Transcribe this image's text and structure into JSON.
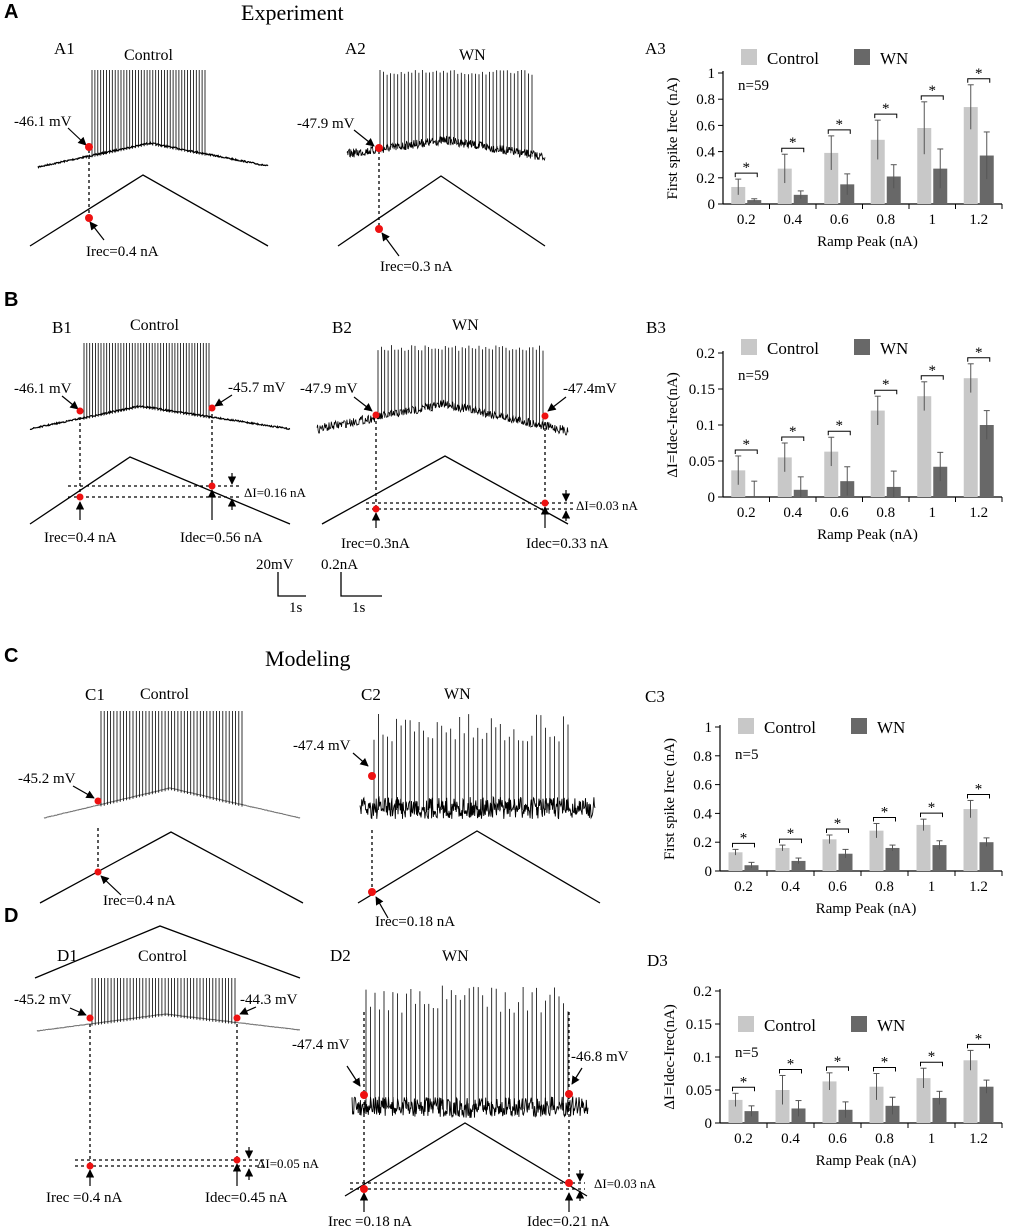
{
  "panels": {
    "A": "A",
    "B": "B",
    "C": "C",
    "D": "D"
  },
  "titles": {
    "experiment": "Experiment",
    "modeling": "Modeling"
  },
  "sub_labels": {
    "A1": "A1",
    "A2": "A2",
    "A3": "A3",
    "B1": "B1",
    "B2": "B2",
    "B3": "B3",
    "C1": "C1",
    "C2": "C2",
    "C3": "C3",
    "D1": "D1",
    "D2": "D2",
    "D3": "D3"
  },
  "conditions": {
    "control": "Control",
    "wn": "WN"
  },
  "annotations": {
    "A1_v": "-46.1 mV",
    "A1_i": "Irec=0.4 nA",
    "A2_v": "-47.9 mV",
    "A2_i": "Irec=0.3 nA",
    "B1_v1": "-46.1 mV",
    "B1_v2": "-45.7 mV",
    "B1_irec": "Irec=0.4 nA",
    "B1_idec": "Idec=0.56 nA",
    "B1_di": "ΔI=0.16 nA",
    "B2_v1": "-47.9 mV",
    "B2_v2": "-47.4mV",
    "B2_irec": "Irec=0.3nA",
    "B2_idec": "Idec=0.33 nA",
    "B2_di": "ΔI=0.03 nA",
    "C1_v": "-45.2 mV",
    "C1_i": "Irec=0.4 nA",
    "C2_v": "-47.4 mV",
    "C2_i": "Irec=0.18 nA",
    "D1_v1": "-45.2 mV",
    "D1_v2": "-44.3 mV",
    "D1_irec": "Irec =0.4 nA",
    "D1_idec": "Idec=0.45 nA",
    "D1_di": "ΔI=0.05 nA",
    "D2_v1": "-47.4 mV",
    "D2_v2": "-46.8 mV",
    "D2_irec": "Irec =0.18 nA",
    "D2_idec": "Idec=0.21 nA",
    "D2_di": "ΔI=0.03 nA"
  },
  "scale_bars": {
    "voltage": "20mV",
    "current": "0.2nA",
    "time1": "1s",
    "time2": "1s"
  },
  "colors": {
    "control": "#c8c8c8",
    "wn": "#686868",
    "marker": "#ee1111",
    "trace": "#000000",
    "trace_model_control": "#777777"
  },
  "chart_data": [
    {
      "id": "A3",
      "type": "bar",
      "title": "",
      "categories": [
        "0.2",
        "0.4",
        "0.6",
        "0.8",
        "1",
        "1.2"
      ],
      "xlabel": "Ramp Peak (nA)",
      "ylabel": "First spike Irec (nA)",
      "ylim": [
        0,
        1
      ],
      "yticks": [
        "0",
        "0.2",
        "0.4",
        "0.6",
        "0.8",
        "1"
      ],
      "n_label": "n=59",
      "sig": "*",
      "series": [
        {
          "name": "Control",
          "values": [
            0.13,
            0.27,
            0.39,
            0.49,
            0.58,
            0.74
          ],
          "errors": [
            0.06,
            0.11,
            0.13,
            0.15,
            0.2,
            0.17
          ]
        },
        {
          "name": "WN",
          "values": [
            0.03,
            0.07,
            0.15,
            0.21,
            0.27,
            0.37
          ],
          "errors": [
            0.01,
            0.03,
            0.08,
            0.09,
            0.15,
            0.18
          ]
        }
      ]
    },
    {
      "id": "B3",
      "type": "bar",
      "title": "",
      "categories": [
        "0.2",
        "0.4",
        "0.6",
        "0.8",
        "1",
        "1.2"
      ],
      "xlabel": "Ramp Peak (nA)",
      "ylabel": "ΔI=Idec-Irec(nA)",
      "ylim": [
        0,
        0.2
      ],
      "yticks": [
        "0",
        "0.05",
        "0.1",
        "0.15",
        "0.2"
      ],
      "n_label": "n=59",
      "sig": "*",
      "series": [
        {
          "name": "Control",
          "values": [
            0.037,
            0.055,
            0.063,
            0.12,
            0.14,
            0.165
          ],
          "errors": [
            0.02,
            0.02,
            0.02,
            0.02,
            0.02,
            0.02
          ]
        },
        {
          "name": "WN",
          "values": [
            0.0,
            0.01,
            0.022,
            0.014,
            0.042,
            0.1
          ],
          "errors": [
            0.022,
            0.018,
            0.02,
            0.022,
            0.02,
            0.02
          ]
        }
      ]
    },
    {
      "id": "C3",
      "type": "bar",
      "title": "",
      "categories": [
        "0.2",
        "0.4",
        "0.6",
        "0.8",
        "1",
        "1.2"
      ],
      "xlabel": "Ramp Peak (nA)",
      "ylabel": "First spike Irec (nA)",
      "ylim": [
        0,
        1
      ],
      "yticks": [
        "0",
        "0.2",
        "0.4",
        "0.6",
        "0.8",
        "1"
      ],
      "n_label": "n=5",
      "sig": "*",
      "series": [
        {
          "name": "Control",
          "values": [
            0.13,
            0.16,
            0.22,
            0.28,
            0.32,
            0.43
          ],
          "errors": [
            0.02,
            0.02,
            0.03,
            0.05,
            0.04,
            0.06
          ]
        },
        {
          "name": "WN",
          "values": [
            0.04,
            0.07,
            0.12,
            0.16,
            0.18,
            0.2
          ],
          "errors": [
            0.02,
            0.02,
            0.03,
            0.02,
            0.03,
            0.03
          ]
        }
      ]
    },
    {
      "id": "D3",
      "type": "bar",
      "title": "",
      "categories": [
        "0.2",
        "0.4",
        "0.6",
        "0.8",
        "1",
        "1.2"
      ],
      "xlabel": "Ramp Peak (nA)",
      "ylabel": "ΔI=Idec-Irec(nA)",
      "ylim": [
        0,
        0.2
      ],
      "yticks": [
        "0",
        "0.05",
        "0.1",
        "0.15",
        "0.2"
      ],
      "n_label": "n=5",
      "sig": "*",
      "series": [
        {
          "name": "Control",
          "values": [
            0.035,
            0.05,
            0.063,
            0.055,
            0.068,
            0.095
          ],
          "errors": [
            0.01,
            0.022,
            0.013,
            0.02,
            0.015,
            0.015
          ]
        },
        {
          "name": "WN",
          "values": [
            0.018,
            0.022,
            0.02,
            0.026,
            0.038,
            0.055
          ],
          "errors": [
            0.008,
            0.012,
            0.012,
            0.013,
            0.01,
            0.01
          ]
        }
      ]
    }
  ]
}
